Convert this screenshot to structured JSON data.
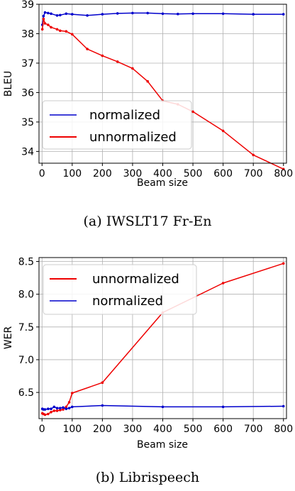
{
  "chart_data": [
    {
      "type": "line",
      "caption": "(a)  IWSLT17 Fr-En",
      "xlabel": "Beam size",
      "ylabel": "BLEU",
      "xlim": [
        -10,
        810
      ],
      "ylim": [
        33.6,
        39.0
      ],
      "xticks": [
        0,
        100,
        200,
        300,
        400,
        500,
        600,
        700,
        800
      ],
      "yticks": [
        34,
        35,
        36,
        37,
        38,
        39
      ],
      "grid": true,
      "legend_position": "lower-left",
      "series": [
        {
          "name": "normalized",
          "color": "#0000cc",
          "x": [
            1,
            5,
            10,
            20,
            30,
            50,
            60,
            80,
            100,
            150,
            200,
            250,
            300,
            350,
            400,
            450,
            500,
            600,
            700,
            800
          ],
          "y": [
            38.3,
            38.6,
            38.72,
            38.7,
            38.68,
            38.62,
            38.63,
            38.68,
            38.66,
            38.62,
            38.66,
            38.69,
            38.7,
            38.7,
            38.68,
            38.67,
            38.68,
            38.68,
            38.66,
            38.66
          ]
        },
        {
          "name": "unnormalized",
          "color": "#ee0000",
          "x": [
            1,
            5,
            10,
            20,
            30,
            50,
            60,
            80,
            100,
            150,
            200,
            250,
            300,
            350,
            400,
            450,
            500,
            600,
            700,
            800
          ],
          "y": [
            38.15,
            38.5,
            38.35,
            38.3,
            38.22,
            38.15,
            38.1,
            38.08,
            37.98,
            37.48,
            37.25,
            37.05,
            36.82,
            36.38,
            35.72,
            35.6,
            35.35,
            34.7,
            33.88,
            33.4
          ]
        }
      ]
    },
    {
      "type": "line",
      "caption": "(b)  Librispeech",
      "xlabel": "Beam size",
      "ylabel": "WER",
      "xlim": [
        -10,
        810
      ],
      "ylim": [
        6.1,
        8.56
      ],
      "xticks": [
        0,
        100,
        200,
        300,
        400,
        500,
        600,
        700,
        800
      ],
      "yticks": [
        6.5,
        7.0,
        7.5,
        8.0,
        8.5
      ],
      "grid": true,
      "legend_position": "upper-left",
      "series": [
        {
          "name": "unnormalized",
          "color": "#ee0000",
          "x": [
            1,
            5,
            10,
            20,
            30,
            40,
            50,
            60,
            70,
            80,
            90,
            100,
            200,
            400,
            600,
            800
          ],
          "y": [
            6.18,
            6.17,
            6.16,
            6.17,
            6.2,
            6.22,
            6.22,
            6.23,
            6.24,
            6.28,
            6.35,
            6.49,
            6.65,
            7.72,
            8.17,
            8.47
          ]
        },
        {
          "name": "normalized",
          "color": "#0000cc",
          "x": [
            1,
            5,
            10,
            20,
            30,
            40,
            50,
            60,
            70,
            80,
            90,
            100,
            200,
            400,
            600,
            800
          ],
          "y": [
            6.25,
            6.24,
            6.24,
            6.25,
            6.25,
            6.28,
            6.26,
            6.26,
            6.27,
            6.25,
            6.26,
            6.28,
            6.3,
            6.28,
            6.28,
            6.29
          ]
        }
      ]
    }
  ]
}
